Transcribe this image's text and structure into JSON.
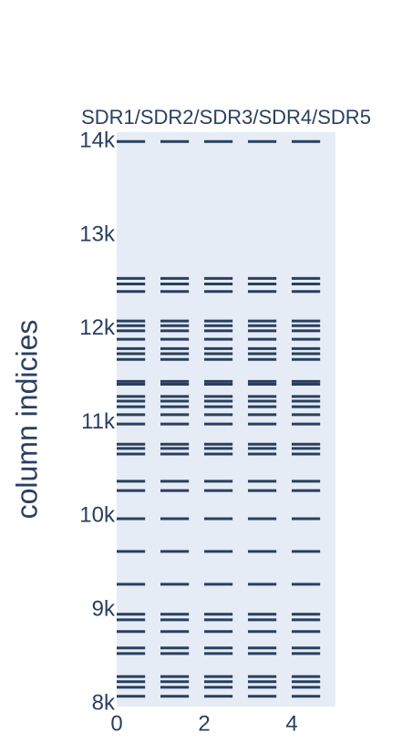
{
  "chart_data": {
    "type": "strip",
    "title": "SDR1/SDR2/SDR3/SDR4/SDR5",
    "y_label": "column indicies",
    "color": "#2a3f5f",
    "background": "#e5ecf6",
    "xlim": [
      0,
      5
    ],
    "xticks": [
      0,
      2,
      4
    ],
    "ylim": [
      7970,
      14100
    ],
    "yticks": [
      {
        "value": 8000,
        "label": "8k"
      },
      {
        "value": 9000,
        "label": "9k"
      },
      {
        "value": 10000,
        "label": "10k"
      },
      {
        "value": 11000,
        "label": "11k"
      },
      {
        "value": 12000,
        "label": "12k"
      },
      {
        "value": 13000,
        "label": "13k"
      },
      {
        "value": 14000,
        "label": "14k"
      }
    ],
    "columns": [
      {
        "x": 0,
        "values": [
          14000,
          12540,
          12480,
          12400,
          12085,
          12035,
          11980,
          11890,
          11790,
          11735,
          11675,
          11440,
          11410,
          11280,
          11230,
          11170,
          11085,
          10985,
          10770,
          10725,
          10665,
          10375,
          10275,
          9975,
          9625,
          9275,
          8955,
          8895,
          8770,
          8595,
          8535,
          8290,
          8235,
          8175,
          8080
        ]
      },
      {
        "x": 1,
        "values": [
          14000,
          12540,
          12480,
          12400,
          12085,
          12035,
          11980,
          11890,
          11790,
          11735,
          11675,
          11440,
          11410,
          11280,
          11230,
          11170,
          11085,
          10985,
          10770,
          10725,
          10665,
          10375,
          10275,
          9975,
          9625,
          9275,
          8955,
          8895,
          8770,
          8595,
          8535,
          8290,
          8235,
          8175,
          8080
        ]
      },
      {
        "x": 2,
        "values": [
          14000,
          12540,
          12480,
          12400,
          12085,
          12035,
          11980,
          11890,
          11790,
          11735,
          11675,
          11440,
          11410,
          11280,
          11230,
          11170,
          11085,
          10985,
          10770,
          10725,
          10665,
          10375,
          10275,
          9975,
          9625,
          9275,
          8955,
          8895,
          8770,
          8595,
          8535,
          8290,
          8235,
          8175,
          8080
        ]
      },
      {
        "x": 3,
        "values": [
          14000,
          12540,
          12480,
          12400,
          12085,
          12035,
          11980,
          11890,
          11790,
          11735,
          11675,
          11440,
          11410,
          11280,
          11230,
          11170,
          11085,
          10985,
          10770,
          10725,
          10665,
          10375,
          10275,
          9975,
          9625,
          9275,
          8955,
          8895,
          8770,
          8595,
          8535,
          8290,
          8235,
          8175,
          8080
        ]
      },
      {
        "x": 4,
        "values": [
          14000,
          12540,
          12480,
          12400,
          12085,
          12035,
          11980,
          11890,
          11790,
          11735,
          11675,
          11440,
          11410,
          11280,
          11230,
          11170,
          11085,
          10985,
          10770,
          10725,
          10665,
          10375,
          10275,
          9975,
          9625,
          9275,
          8955,
          8895,
          8770,
          8595,
          8535,
          8290,
          8235,
          8175,
          8080
        ]
      }
    ]
  }
}
